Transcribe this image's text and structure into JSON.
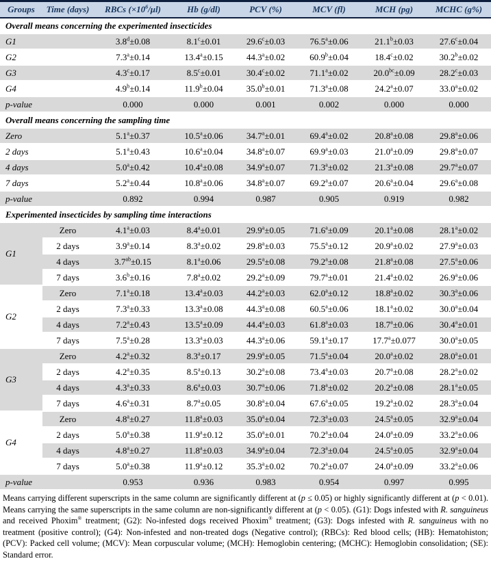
{
  "colors": {
    "header_bg": "#c9d6e8",
    "header_text": "#17365d",
    "row_gray": "#d9d9d9",
    "row_white": "#ffffff",
    "rule_dark": "#0d1f3c"
  },
  "table": {
    "columns": [
      "Groups",
      "Time (days)",
      "RBCs (×10^6^/μl)",
      "Hb (g/dl)",
      "PCV (%)",
      "MCV (fl)",
      "MCH (pg)",
      "MCHC (g%)"
    ],
    "sections": [
      {
        "title": "Overall means concerning the experimented insecticides",
        "rows": [
          {
            "label": "G1",
            "values": [
              "3.8^d^±0.08",
              "8.1^c^±0.01",
              "29.6^c^±0.03",
              "76.5^a^±0.06",
              "21.1^b^±0.03",
              "27.6^c^±0.04"
            ]
          },
          {
            "label": "G2",
            "values": [
              "7.3^a^±0.14",
              "13.4^a^±0.15",
              "44.3^a^±0.02",
              "60.9^b^±0.04",
              "18.4^c^±0.02",
              "30.2^b^±0.02"
            ]
          },
          {
            "label": "G3",
            "values": [
              "4.3^c^±0.17",
              "8.5^c^±0.01",
              "30.4^c^±0.02",
              "71.1^a^±0.02",
              "20.0^bc^±0.09",
              "28.2^c^±0.03"
            ]
          },
          {
            "label": "G4",
            "values": [
              "4.9^b^±0.14",
              "11.9^b^±0.04",
              "35.0^b^±0.01",
              "71.3^a^±0.08",
              "24.2^a^±0.07",
              "33.0^a^±0.02"
            ]
          },
          {
            "label": "p-value",
            "values": [
              "0.000",
              "0.000",
              "0.001",
              "0.002",
              "0.000",
              "0.000"
            ]
          }
        ]
      },
      {
        "title": "Overall means concerning the sampling time",
        "rows": [
          {
            "label": "Zero",
            "values": [
              "5.1^a^±0.37",
              "10.5^a^±0.06",
              "34.7^a^±0.01",
              "69.4^a^±0.02",
              "20.8^a^±0.08",
              "29.8^a^±0.06"
            ]
          },
          {
            "label": "2 days",
            "values": [
              "5.1^a^±0.43",
              "10.6^a^±0.04",
              "34.8^a^±0.07",
              "69.9^a^±0.03",
              "21.0^a^±0.09",
              "29.8^a^±0.07"
            ]
          },
          {
            "label": "4 days",
            "values": [
              "5.0^a^±0.42",
              "10.4^a^±0.08",
              "34.9^a^±0.07",
              "71.3^a^±0.02",
              "21.3^a^±0.08",
              "29.7^a^±0.07"
            ]
          },
          {
            "label": "7 days",
            "values": [
              "5.2^a^±0.44",
              "10.8^a^±0.06",
              "34.8^a^±0.07",
              "69.2^a^±0.07",
              "20.6^a^±0.04",
              "29.6^a^±0.08"
            ]
          },
          {
            "label": "p-value",
            "values": [
              "0.892",
              "0.994",
              "0.987",
              "0.905",
              "0.919",
              "0.982"
            ]
          }
        ]
      },
      {
        "title": "Experimented insecticides by sampling time interactions",
        "groups": [
          {
            "label": "G1",
            "rows": [
              {
                "time": "Zero",
                "values": [
                  "4.1^a^±0.03",
                  "8.4^a^±0.01",
                  "29.9^a^±0.05",
                  "71.6^a^±0.09",
                  "20.1^a^±0.08",
                  "28.1^a^±0.02"
                ]
              },
              {
                "time": "2 days",
                "values": [
                  "3.9^a^±0.14",
                  "8.3^a^±0.02",
                  "29.8^a^±0.03",
                  "75.5^a^±0.12",
                  "20.9^a^±0.02",
                  "27.9^a^±0.03"
                ]
              },
              {
                "time": "4 days",
                "values": [
                  "3.7^ab^±0.15",
                  "8.1^a^±0.06",
                  "29.5^a^±0.08",
                  "79.2^a^±0.08",
                  "21.8^a^±0.08",
                  "27.5^a^±0.06"
                ]
              },
              {
                "time": "7 days",
                "values": [
                  "3.6^b^±0.16",
                  "7.8^a^±0.02",
                  "29.2^a^±0.09",
                  "79.7^a^±0.01",
                  "21.4^a^±0.02",
                  "26.9^a^±0.06"
                ]
              }
            ]
          },
          {
            "label": "G2",
            "rows": [
              {
                "time": "Zero",
                "values": [
                  "7.1^a^±0.18",
                  "13.4^a^±0.03",
                  "44.2^a^±0.03",
                  "62.0^a^±0.12",
                  "18.8^a^±0.02",
                  "30.3^a^±0.06"
                ]
              },
              {
                "time": "2 days",
                "values": [
                  "7.3^a^±0.33",
                  "13.3^a^±0.08",
                  "44.3^a^±0.08",
                  "60.5^a^±0.06",
                  "18.1^a^±0.02",
                  "30.0^a^±0.04"
                ]
              },
              {
                "time": "4 days",
                "values": [
                  "7.2^a^±0.43",
                  "13.5^a^±0.09",
                  "44.4^a^±0.03",
                  "61.8^a^±0.03",
                  "18.7^a^±0.06",
                  "30.4^a^±0.01"
                ]
              },
              {
                "time": "7 days",
                "values": [
                  "7.5^a^±0.28",
                  "13.3^a^±0.03",
                  "44.3^a^±0.06",
                  "59.1^a^±0.17",
                  "17.7^a^±0.077",
                  "30.0^a^±0.05"
                ]
              }
            ]
          },
          {
            "label": "G3",
            "rows": [
              {
                "time": "Zero",
                "values": [
                  "4.2^a^±0.32",
                  "8.3^a^±0.17",
                  "29.9^a^±0.05",
                  "71.5^a^±0.04",
                  "20.0^a^±0.02",
                  "28.0^a^±0.01"
                ]
              },
              {
                "time": "2 days",
                "values": [
                  "4.2^a^±0.35",
                  "8.5^a^±0.13",
                  "30.2^a^±0.08",
                  "73.4^a^±0.03",
                  "20.7^a^±0.08",
                  "28.2^a^±0.02"
                ]
              },
              {
                "time": "4 days",
                "values": [
                  "4.3^a^±0.33",
                  "8.6^a^±0.03",
                  "30.7^a^±0.06",
                  "71.8^a^±0.02",
                  "20.2^a^±0.08",
                  "28.1^a^±0.05"
                ]
              },
              {
                "time": "7 days",
                "values": [
                  "4.6^a^±0.31",
                  "8.7^a^±0.05",
                  "30.8^a^±0.04",
                  "67.6^a^±0.05",
                  "19.2^a^±0.02",
                  "28.3^a^±0.04"
                ]
              }
            ]
          },
          {
            "label": "G4",
            "rows": [
              {
                "time": "Zero",
                "values": [
                  "4.8^a^±0.27",
                  "11.8^a^±0.03",
                  "35.0^a^±0.04",
                  "72.3^a^±0.03",
                  "24.5^a^±0.05",
                  "32.9^a^±0.04"
                ]
              },
              {
                "time": "2 days",
                "values": [
                  "5.0^a^±0.38",
                  "11.9^a^±0.12",
                  "35.0^a^±0.01",
                  "70.2^a^±0.04",
                  "24.0^a^±0.09",
                  "33.2^a^±0.06"
                ]
              },
              {
                "time": "4 days",
                "values": [
                  "4.8^a^±0.27",
                  "11.8^a^±0.03",
                  "34.9^a^±0.04",
                  "72.3^a^±0.04",
                  "24.5^a^±0.05",
                  "32.9^a^±0.04"
                ]
              },
              {
                "time": "7 days",
                "values": [
                  "5.0^a^±0.38",
                  "11.9^a^±0.12",
                  "35.3^a^±0.02",
                  "70.2^a^±0.07",
                  "24.0^a^±0.09",
                  "33.2^a^±0.06"
                ]
              }
            ]
          }
        ],
        "pvalue_row": {
          "label": "p-value",
          "values": [
            "0.953",
            "0.936",
            "0.983",
            "0.954",
            "0.997",
            "0.995"
          ]
        }
      }
    ]
  },
  "footnote": "Means carrying different superscripts in the same column are significantly different at (*p* ≤ 0.05) or highly significantly different at (*p* < 0.01). Means carrying the same superscripts in the same column are non-significantly different at (*p* < 0.05). (G1): Dogs infested with *R. sanguineus* and received Phoxim^®^ treatment; (G2): No-infested dogs received Phoxim^®^ treatment; (G3): Dogs infested with *R. sanguineus* with no treatment (positive control); (G4): Non-infested and non-treated dogs (Negative control); (RBCs): Red blood cells; (HB): Hematohiston; (PCV): Packed cell volume; (MCV): Mean corpuscular volume; (MCH): Hemoglobin centering; (MCHC): Hemoglobin consolidation; (SE): Standard error."
}
